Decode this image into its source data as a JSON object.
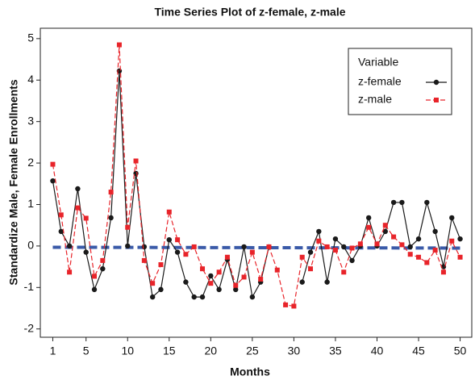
{
  "chart_data": {
    "type": "line",
    "title": "Time Series Plot of z-female, z-male",
    "x_label": "Months",
    "y_label": "Standardize Male, Female Enrollments",
    "legend_title": "Variable",
    "legend": "upper right",
    "grid": false,
    "x": [
      1,
      2,
      3,
      4,
      5,
      6,
      7,
      8,
      9,
      10,
      11,
      12,
      13,
      14,
      15,
      16,
      17,
      18,
      19,
      20,
      21,
      22,
      23,
      24,
      25,
      26,
      27,
      28,
      29,
      30,
      31,
      32,
      33,
      34,
      35,
      36,
      37,
      38,
      39,
      40,
      41,
      42,
      43,
      44,
      45,
      46,
      47,
      48,
      49,
      50
    ],
    "series": [
      {
        "name": "z-female",
        "color": "#1a1a1a",
        "marker": "circle",
        "dashed": false,
        "values": [
          1.57,
          0.35,
          0.0,
          1.38,
          -0.15,
          -1.05,
          -0.55,
          0.68,
          4.22,
          0.0,
          1.75,
          -0.02,
          -1.23,
          -1.05,
          0.15,
          -0.15,
          -0.87,
          -1.23,
          -1.23,
          -0.72,
          -1.05,
          -0.33,
          -1.05,
          -0.02,
          -1.23,
          -0.87,
          -0.02,
          null,
          null,
          null,
          -0.87,
          -0.15,
          0.35,
          -0.87,
          0.17,
          -0.02,
          -0.35,
          0.0,
          0.68,
          0.0,
          0.35,
          1.05,
          1.05,
          -0.02,
          0.17,
          1.05,
          0.35,
          -0.5,
          0.68,
          0.17
        ]
      },
      {
        "name": "z-male",
        "color": "#e8242a",
        "marker": "square",
        "dashed": true,
        "values": [
          1.97,
          0.75,
          -0.63,
          0.92,
          0.67,
          -0.73,
          -0.35,
          1.3,
          4.85,
          0.45,
          2.05,
          -0.35,
          -0.9,
          -0.45,
          0.82,
          0.15,
          -0.2,
          -0.02,
          -0.55,
          -0.9,
          -0.63,
          -0.27,
          -0.95,
          -0.75,
          -0.15,
          -0.8,
          -0.02,
          -0.58,
          -1.42,
          -1.45,
          -0.27,
          -0.55,
          0.12,
          -0.02,
          -0.1,
          -0.63,
          -0.05,
          0.05,
          0.45,
          0.05,
          0.5,
          0.22,
          0.03,
          -0.2,
          -0.27,
          -0.4,
          -0.1,
          -0.63,
          0.12,
          -0.27
        ]
      }
    ],
    "trend_line": {
      "x": [
        1,
        50
      ],
      "values": [
        -0.03,
        -0.05
      ],
      "color": "#3a5aa8"
    },
    "xlim": [
      -0.5,
      51.4
    ],
    "ylim": [
      -2.2,
      5.25
    ],
    "xticks": [
      1,
      5,
      10,
      15,
      20,
      25,
      30,
      35,
      40,
      45,
      50
    ],
    "yticks": [
      -2,
      -1,
      0,
      1,
      2,
      3,
      4,
      5
    ]
  }
}
